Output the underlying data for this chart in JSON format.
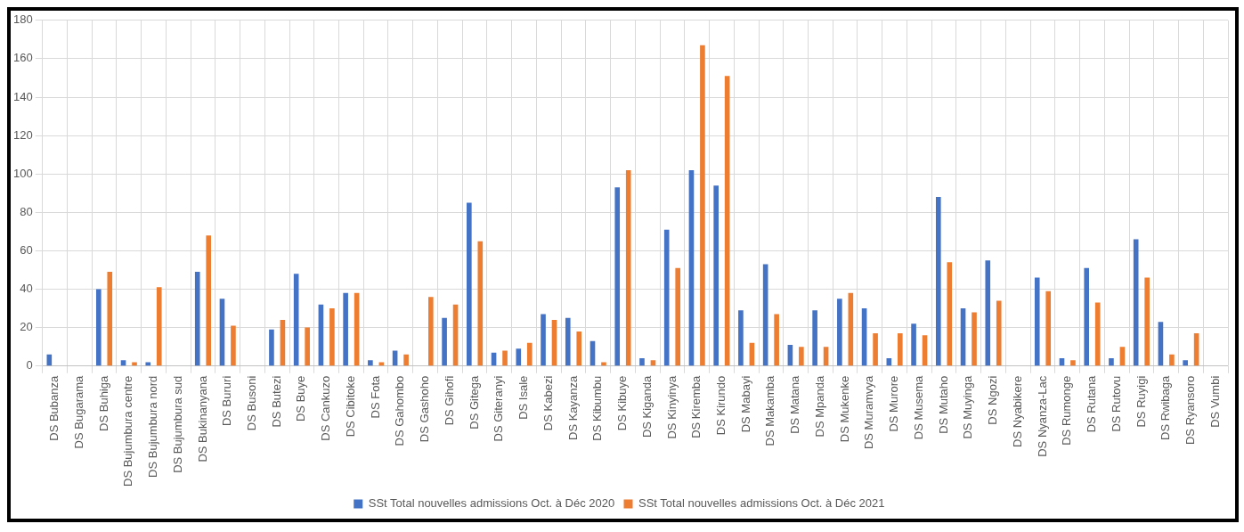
{
  "chart_data": {
    "type": "bar",
    "categories": [
      "DS Bubanza",
      "DS Bugarama",
      "DS Buhiga",
      "DS Bujumbura centre",
      "DS Bujumbura nord",
      "DS Bujumbura sud",
      "DS Bukinanyana",
      "DS Bururi",
      "DS Busoni",
      "DS Butezi",
      "DS Buye",
      "DS Cankuzo",
      "DS Cibitoke",
      "DS Fota",
      "DS Gahombo",
      "DS Gashoho",
      "DS Gihofi",
      "DS Gitega",
      "DS Giteranyi",
      "DS Isale",
      "DS Kabezi",
      "DS Kayanza",
      "DS Kibumbu",
      "DS Kibuye",
      "DS Kiganda",
      "DS Kinyinya",
      "DS Kiremba",
      "DS Kirundo",
      "DS Mabayi",
      "DS Makamba",
      "DS Matana",
      "DS Mpanda",
      "DS Mukenke",
      "DS Muramvya",
      "DS Murore",
      "DS Musema",
      "DS Mutaho",
      "DS Muyinga",
      "DS Ngozi",
      "DS Nyabikere",
      "DS Nyanza-Lac",
      "DS Rumonge",
      "DS Rutana",
      "DS Rutovu",
      "DS Ruyigi",
      "DS Rwibaga",
      "DS Ryansoro",
      "DS Vumbi"
    ],
    "series": [
      {
        "name": "SSt Total nouvelles admissions Oct. à Déc 2020",
        "color": "#4472c4",
        "values": [
          6,
          0,
          40,
          3,
          2,
          0,
          49,
          35,
          0,
          19,
          48,
          32,
          38,
          3,
          8,
          0,
          25,
          85,
          7,
          9,
          27,
          25,
          13,
          93,
          4,
          71,
          102,
          94,
          29,
          53,
          11,
          29,
          35,
          30,
          4,
          22,
          88,
          30,
          55,
          0,
          46,
          4,
          51,
          4,
          66,
          23,
          3,
          0
        ]
      },
      {
        "name": "SSt Total nouvelles admissions Oct. à Déc 2021",
        "color": "#ed7d31",
        "values": [
          0,
          0,
          49,
          2,
          41,
          0,
          68,
          21,
          0,
          24,
          20,
          30,
          38,
          2,
          6,
          36,
          32,
          65,
          8,
          12,
          24,
          18,
          2,
          102,
          3,
          51,
          167,
          151,
          12,
          27,
          10,
          10,
          38,
          17,
          17,
          16,
          54,
          28,
          34,
          0,
          39,
          3,
          33,
          10,
          46,
          6,
          17,
          0
        ]
      }
    ],
    "ylim": [
      0,
      180
    ],
    "yticks": [
      0,
      20,
      40,
      60,
      80,
      100,
      120,
      140,
      160,
      180
    ],
    "grid": true,
    "legend": "bottom"
  }
}
